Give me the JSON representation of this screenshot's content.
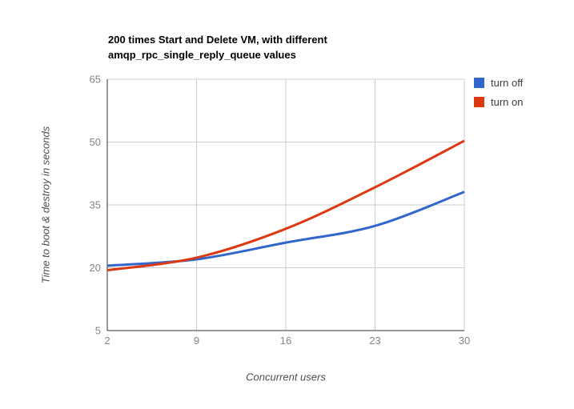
{
  "title": {
    "line1": "200 times Start and Delete VM, with different",
    "line2": "amqp_rpc_single_reply_queue values"
  },
  "chart_data": {
    "type": "line",
    "title": "200 times Start and Delete VM, with different amqp_rpc_single_reply_queue values",
    "xlabel": "Concurrent users",
    "ylabel": "Time to boot & destroy in seconds",
    "x": [
      2,
      9,
      16,
      23,
      30
    ],
    "series": [
      {
        "name": "turn off",
        "color": "#3366CC",
        "values": [
          20.5,
          22.0,
          26.0,
          30.0,
          38.1
        ]
      },
      {
        "name": "turn on",
        "color": "#DC3912",
        "values": [
          19.4,
          22.4,
          29.3,
          39.2,
          50.3
        ]
      }
    ],
    "x_ticks": [
      2,
      9,
      16,
      23,
      30
    ],
    "y_ticks": [
      5,
      20,
      35,
      50,
      65
    ],
    "xlim": [
      2,
      30
    ],
    "ylim": [
      5,
      65
    ],
    "grid": true,
    "curve": "smooth",
    "legend_position": "right",
    "colors": {
      "background": "#ffffff",
      "gridline": "#cccccc",
      "axis": "#333333",
      "tick_label": "#848484",
      "title": "#000000",
      "axis_title": "#4d4d4d"
    }
  }
}
